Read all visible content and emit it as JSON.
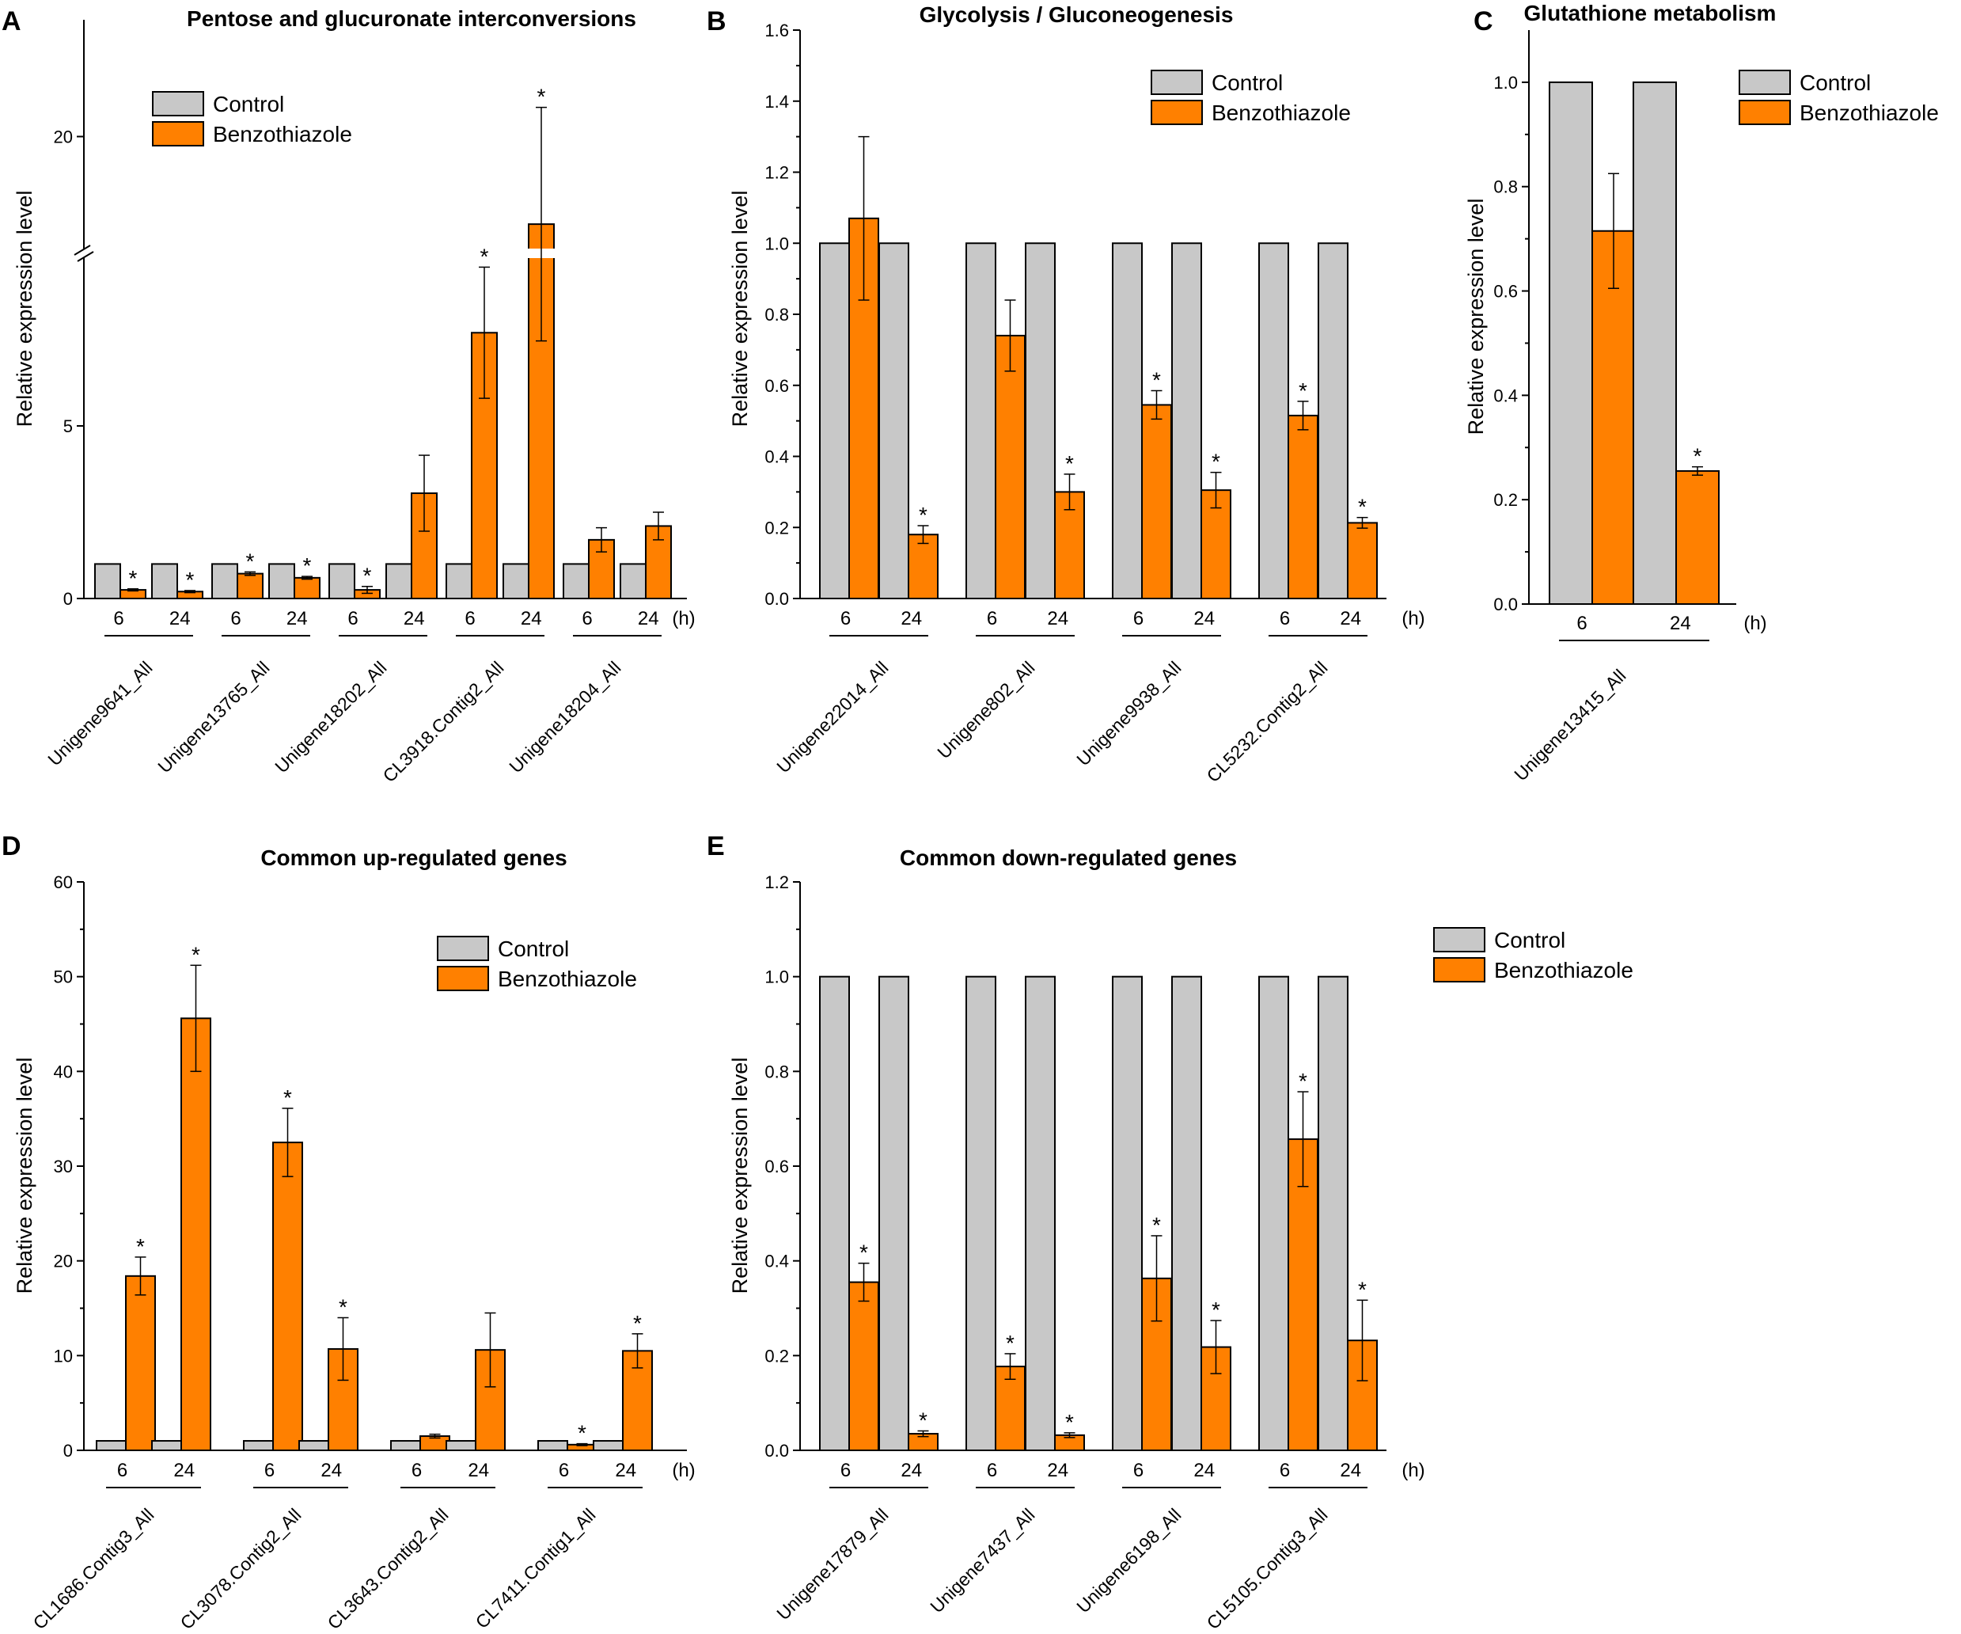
{
  "colors": {
    "control": "#c8c8c8",
    "treatment": "#ff8000",
    "stroke": "#000000"
  },
  "legend": {
    "control": "Control",
    "treatment": "Benzothiazole"
  },
  "chart_data": [
    {
      "id": "A",
      "letter": "A",
      "type": "bar",
      "title": "Pentose and glucuronate interconversions",
      "ylabel": "Relative expression level",
      "hours": [
        "6",
        "24"
      ],
      "hour_unit": "(h)",
      "ylim": [
        0,
        22
      ],
      "axis_break": [
        10,
        18
      ],
      "ticks": [
        "0",
        "5",
        "20"
      ],
      "tick_values": [
        0,
        5,
        20
      ],
      "genes": [
        {
          "name": "Unigene9641_All",
          "groups": [
            {
              "control": 1,
              "treatment": 0.25,
              "err": 0.03,
              "star": "*"
            },
            {
              "control": 1,
              "treatment": 0.2,
              "err": 0.03,
              "star": "*"
            }
          ]
        },
        {
          "name": "Unigene13765_All",
          "groups": [
            {
              "control": 1,
              "treatment": 0.72,
              "err": 0.05,
              "star": "*"
            },
            {
              "control": 1,
              "treatment": 0.6,
              "err": 0.04,
              "star": "*"
            }
          ]
        },
        {
          "name": "Unigene18202_All",
          "groups": [
            {
              "control": 1,
              "treatment": 0.25,
              "err": 0.1,
              "star": "*"
            },
            {
              "control": 1,
              "treatment": 3.05,
              "err": 1.1,
              "star": ""
            }
          ]
        },
        {
          "name": "CL3918.Contig2_All",
          "groups": [
            {
              "control": 1,
              "treatment": 7.7,
              "err": 1.9,
              "star": "*"
            },
            {
              "control": 1,
              "treatment": 18.5,
              "err": 2.0,
              "star": "*"
            }
          ]
        },
        {
          "name": "Unigene18204_All",
          "groups": [
            {
              "control": 1,
              "treatment": 1.7,
              "err": 0.35,
              "star": ""
            },
            {
              "control": 1,
              "treatment": 2.1,
              "err": 0.4,
              "star": ""
            }
          ]
        }
      ]
    },
    {
      "id": "B",
      "letter": "B",
      "type": "bar",
      "title": "Glycolysis / Gluconeogenesis",
      "ylabel": "Relative expression level",
      "hours": [
        "6",
        "24"
      ],
      "hour_unit": "(h)",
      "ylim": [
        0,
        1.6
      ],
      "ticks": [
        "0.0",
        "0.2",
        "0.4",
        "0.6",
        "0.8",
        "1.0",
        "1.2",
        "1.4",
        "1.6"
      ],
      "tick_values": [
        0,
        0.2,
        0.4,
        0.6,
        0.8,
        1.0,
        1.2,
        1.4,
        1.6
      ],
      "genes": [
        {
          "name": "Unigene22014_All",
          "groups": [
            {
              "control": 1,
              "treatment": 1.07,
              "err": 0.23,
              "star": ""
            },
            {
              "control": 1,
              "treatment": 0.18,
              "err": 0.025,
              "star": "*"
            }
          ]
        },
        {
          "name": "Unigene802_All",
          "groups": [
            {
              "control": 1,
              "treatment": 0.74,
              "err": 0.1,
              "star": ""
            },
            {
              "control": 1,
              "treatment": 0.3,
              "err": 0.05,
              "star": "*"
            }
          ]
        },
        {
          "name": "Unigene9938_All",
          "groups": [
            {
              "control": 1,
              "treatment": 0.545,
              "err": 0.04,
              "star": "*"
            },
            {
              "control": 1,
              "treatment": 0.305,
              "err": 0.05,
              "star": "*"
            }
          ]
        },
        {
          "name": "CL5232.Contig2_All",
          "groups": [
            {
              "control": 1,
              "treatment": 0.515,
              "err": 0.04,
              "star": "*"
            },
            {
              "control": 1,
              "treatment": 0.213,
              "err": 0.015,
              "star": "*"
            }
          ]
        }
      ]
    },
    {
      "id": "C",
      "letter": "C",
      "type": "bar",
      "title": "Glutathione metabolism",
      "ylabel": "Relative expression level",
      "hours": [
        "6",
        "24"
      ],
      "hour_unit": "(h)",
      "ylim": [
        0,
        1.1
      ],
      "ticks": [
        "0.0",
        "0.2",
        "0.4",
        "0.6",
        "0.8",
        "1.0"
      ],
      "tick_values": [
        0,
        0.2,
        0.4,
        0.6,
        0.8,
        1.0
      ],
      "genes": [
        {
          "name": "Unigene13415_All",
          "groups": [
            {
              "control": 1,
              "treatment": 0.715,
              "err": 0.11,
              "star": ""
            },
            {
              "control": 1,
              "treatment": 0.255,
              "err": 0.008,
              "star": "*"
            }
          ]
        }
      ]
    },
    {
      "id": "D",
      "letter": "D",
      "type": "bar",
      "title": "Common up-regulated genes",
      "ylabel": "Relative expression level",
      "hours": [
        "6",
        "24"
      ],
      "hour_unit": "(h)",
      "ylim": [
        0,
        60
      ],
      "ticks": [
        "0",
        "10",
        "20",
        "30",
        "40",
        "50",
        "60"
      ],
      "tick_values": [
        0,
        10,
        20,
        30,
        40,
        50,
        60
      ],
      "genes": [
        {
          "name": "CL1686.Contig3_All",
          "groups": [
            {
              "control": 1,
              "treatment": 18.4,
              "err": 2.0,
              "star": "*"
            },
            {
              "control": 1,
              "treatment": 45.6,
              "err": 5.6,
              "star": "*"
            }
          ]
        },
        {
          "name": "CL3078.Contig2_All",
          "groups": [
            {
              "control": 1,
              "treatment": 32.5,
              "err": 3.6,
              "star": "*"
            },
            {
              "control": 1,
              "treatment": 10.7,
              "err": 3.3,
              "star": "*"
            }
          ]
        },
        {
          "name": "CL3643.Contig2_All",
          "groups": [
            {
              "control": 1,
              "treatment": 1.5,
              "err": 0.2,
              "star": ""
            },
            {
              "control": 1,
              "treatment": 10.6,
              "err": 3.9,
              "star": ""
            }
          ]
        },
        {
          "name": "CL7411.Contig1_All",
          "groups": [
            {
              "control": 1,
              "treatment": 0.6,
              "err": 0.1,
              "star": "*"
            },
            {
              "control": 1,
              "treatment": 10.5,
              "err": 1.8,
              "star": "*"
            }
          ]
        }
      ]
    },
    {
      "id": "E",
      "letter": "E",
      "type": "bar",
      "title": "Common down-regulated genes",
      "ylabel": "Relative expression level",
      "hours": [
        "6",
        "24"
      ],
      "hour_unit": "(h)",
      "ylim": [
        0,
        1.2
      ],
      "ticks": [
        "0.0",
        "0.2",
        "0.4",
        "0.6",
        "0.8",
        "1.0",
        "1.2"
      ],
      "tick_values": [
        0,
        0.2,
        0.4,
        0.6,
        0.8,
        1.0,
        1.2
      ],
      "genes": [
        {
          "name": "Unigene17879_All",
          "groups": [
            {
              "control": 1,
              "treatment": 0.355,
              "err": 0.04,
              "star": "*"
            },
            {
              "control": 1,
              "treatment": 0.035,
              "err": 0.006,
              "star": "*"
            }
          ]
        },
        {
          "name": "Unigene7437_All",
          "groups": [
            {
              "control": 1,
              "treatment": 0.177,
              "err": 0.027,
              "star": "*"
            },
            {
              "control": 1,
              "treatment": 0.032,
              "err": 0.005,
              "star": "*"
            }
          ]
        },
        {
          "name": "Unigene6198_All",
          "groups": [
            {
              "control": 1,
              "treatment": 0.363,
              "err": 0.09,
              "star": "*"
            },
            {
              "control": 1,
              "treatment": 0.218,
              "err": 0.056,
              "star": "*"
            }
          ]
        },
        {
          "name": "CL5105.Contig3_All",
          "groups": [
            {
              "control": 1,
              "treatment": 0.657,
              "err": 0.1,
              "star": "*"
            },
            {
              "control": 1,
              "treatment": 0.232,
              "err": 0.085,
              "star": "*"
            }
          ]
        }
      ]
    }
  ]
}
